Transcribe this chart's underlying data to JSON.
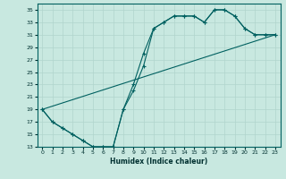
{
  "xlabel": "Humidex (Indice chaleur)",
  "xlim": [
    -0.5,
    23.5
  ],
  "ylim": [
    13,
    36
  ],
  "yticks": [
    13,
    15,
    17,
    19,
    21,
    23,
    25,
    27,
    29,
    31,
    33,
    35
  ],
  "xticks": [
    0,
    1,
    2,
    3,
    4,
    5,
    6,
    7,
    8,
    9,
    10,
    11,
    12,
    13,
    14,
    15,
    16,
    17,
    18,
    19,
    20,
    21,
    22,
    23
  ],
  "bg_color": "#c8e8e0",
  "grid_color": "#b0d4cc",
  "line_color": "#006060",
  "line1_x": [
    0,
    1,
    2,
    3,
    4,
    5,
    6,
    7,
    8,
    9,
    10,
    11,
    12,
    13,
    14,
    15,
    16,
    17,
    18,
    19,
    20,
    21,
    22,
    23
  ],
  "line1_y": [
    19,
    17,
    16,
    15,
    14,
    13,
    13,
    13,
    19,
    23,
    28,
    32,
    33,
    34,
    34,
    34,
    33,
    35,
    35,
    34,
    32,
    31,
    31,
    31
  ],
  "line2_x": [
    0,
    1,
    2,
    3,
    4,
    5,
    6,
    7,
    8,
    9,
    10,
    11,
    12,
    13,
    14,
    15,
    16,
    17,
    18,
    19,
    20,
    21,
    22,
    23
  ],
  "line2_y": [
    19,
    17,
    16,
    15,
    14,
    13,
    13,
    13,
    19,
    22,
    26,
    32,
    33,
    34,
    34,
    34,
    33,
    35,
    35,
    34,
    32,
    31,
    31,
    31
  ],
  "line3_x": [
    0,
    23
  ],
  "line3_y": [
    19,
    31
  ]
}
